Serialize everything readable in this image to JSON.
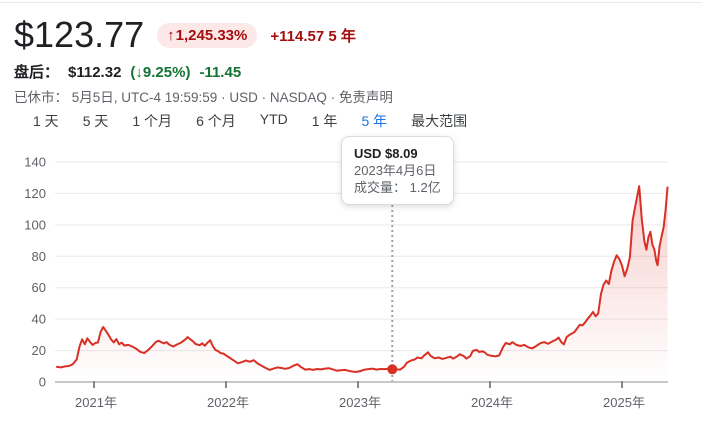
{
  "header": {
    "price": "$123.77",
    "change_arrow": "↑",
    "change_pct": "1,245.33%",
    "change_abs_period": "+114.57 5 年",
    "after_hours_label": "盘后：",
    "after_hours_price": "$112.32",
    "after_hours_pct": "(↓9.25%)",
    "after_hours_abs": "-11.45",
    "status_prefix": "已休市： 5月5日, UTC-4 19:59:59 · USD · NASDAQ ·",
    "disclaimer_label": "免责声明"
  },
  "tabs": [
    {
      "label": "1 天",
      "selected": false
    },
    {
      "label": "5 天",
      "selected": false
    },
    {
      "label": "1 个月",
      "selected": false
    },
    {
      "label": "6 个月",
      "selected": false
    },
    {
      "label": "YTD",
      "selected": false
    },
    {
      "label": "1 年",
      "selected": false
    },
    {
      "label": "5 年",
      "selected": true
    },
    {
      "label": "最大范围",
      "selected": false
    }
  ],
  "tooltip": {
    "price_line": "USD $8.09",
    "date_line": "2023年4月6日",
    "volume_label": "成交量：",
    "volume_value": "1.2亿"
  },
  "colors": {
    "up_red": "#a50e0e",
    "badge_bg": "#fce8e6",
    "down_green": "#137333",
    "accent_blue": "#1a73e8",
    "line_red": "#d93025",
    "grid_gray": "#e8eaed"
  },
  "chart_data": {
    "type": "area",
    "title": "",
    "xlabel": "",
    "ylabel": "",
    "ylim": [
      0,
      140
    ],
    "grid": true,
    "x_axis": {
      "labels": [
        "2021年",
        "2022年",
        "2023年",
        "2024年",
        "2025年"
      ],
      "tick_years": [
        2021,
        2022,
        2023,
        2024,
        2025
      ]
    },
    "y_axis": {
      "labels": [
        "140",
        "120",
        "100",
        "80",
        "60",
        "40",
        "20",
        "0"
      ],
      "ticks": [
        140,
        120,
        100,
        80,
        60,
        40,
        20,
        0
      ]
    },
    "line_color": "#d93025",
    "marker": {
      "t": 2023.26,
      "value": 8.09,
      "date": "2023年4月6日",
      "volume": "1.2亿"
    },
    "series": [
      {
        "name": "price",
        "points": [
          [
            2020.72,
            9.6
          ],
          [
            2020.75,
            9.3
          ],
          [
            2020.78,
            9.9
          ],
          [
            2020.81,
            10.2
          ],
          [
            2020.84,
            11.4
          ],
          [
            2020.87,
            14.5
          ],
          [
            2020.89,
            22.5
          ],
          [
            2020.91,
            27.2
          ],
          [
            2020.93,
            24.0
          ],
          [
            2020.95,
            27.8
          ],
          [
            2020.97,
            25.5
          ],
          [
            2020.99,
            23.6
          ],
          [
            2021.01,
            24.8
          ],
          [
            2021.03,
            25.2
          ],
          [
            2021.05,
            31.8
          ],
          [
            2021.07,
            35.0
          ],
          [
            2021.09,
            32.5
          ],
          [
            2021.11,
            30.0
          ],
          [
            2021.13,
            27.0
          ],
          [
            2021.15,
            25.2
          ],
          [
            2021.17,
            27.3
          ],
          [
            2021.19,
            24.0
          ],
          [
            2021.21,
            25.0
          ],
          [
            2021.23,
            23.2
          ],
          [
            2021.26,
            23.6
          ],
          [
            2021.29,
            22.6
          ],
          [
            2021.32,
            21.2
          ],
          [
            2021.35,
            19.2
          ],
          [
            2021.38,
            18.4
          ],
          [
            2021.41,
            20.3
          ],
          [
            2021.44,
            22.8
          ],
          [
            2021.47,
            25.6
          ],
          [
            2021.49,
            26.2
          ],
          [
            2021.51,
            25.3
          ],
          [
            2021.53,
            24.6
          ],
          [
            2021.55,
            25.4
          ],
          [
            2021.57,
            23.8
          ],
          [
            2021.6,
            22.6
          ],
          [
            2021.63,
            23.9
          ],
          [
            2021.66,
            25.1
          ],
          [
            2021.69,
            27.0
          ],
          [
            2021.71,
            28.6
          ],
          [
            2021.73,
            27.1
          ],
          [
            2021.75,
            25.9
          ],
          [
            2021.77,
            24.2
          ],
          [
            2021.8,
            23.4
          ],
          [
            2021.82,
            24.6
          ],
          [
            2021.84,
            23.1
          ],
          [
            2021.86,
            25.1
          ],
          [
            2021.88,
            26.6
          ],
          [
            2021.9,
            22.9
          ],
          [
            2021.92,
            20.4
          ],
          [
            2021.94,
            19.6
          ],
          [
            2021.96,
            18.4
          ],
          [
            2021.98,
            18.1
          ],
          [
            2022.0,
            16.9
          ],
          [
            2022.03,
            15.3
          ],
          [
            2022.06,
            13.6
          ],
          [
            2022.09,
            11.9
          ],
          [
            2022.12,
            12.6
          ],
          [
            2022.15,
            13.7
          ],
          [
            2022.18,
            12.9
          ],
          [
            2022.21,
            13.9
          ],
          [
            2022.24,
            11.8
          ],
          [
            2022.27,
            10.3
          ],
          [
            2022.3,
            9.0
          ],
          [
            2022.33,
            7.7
          ],
          [
            2022.36,
            8.5
          ],
          [
            2022.39,
            9.3
          ],
          [
            2022.42,
            8.9
          ],
          [
            2022.45,
            8.4
          ],
          [
            2022.48,
            9.0
          ],
          [
            2022.51,
            10.3
          ],
          [
            2022.54,
            11.3
          ],
          [
            2022.57,
            9.4
          ],
          [
            2022.6,
            7.9
          ],
          [
            2022.63,
            8.2
          ],
          [
            2022.66,
            7.7
          ],
          [
            2022.69,
            8.3
          ],
          [
            2022.72,
            8.0
          ],
          [
            2022.75,
            8.5
          ],
          [
            2022.78,
            8.8
          ],
          [
            2022.81,
            8.0
          ],
          [
            2022.84,
            7.2
          ],
          [
            2022.87,
            7.5
          ],
          [
            2022.9,
            7.7
          ],
          [
            2022.93,
            7.1
          ],
          [
            2022.96,
            6.6
          ],
          [
            2022.99,
            6.4
          ],
          [
            2023.02,
            7.0
          ],
          [
            2023.05,
            7.9
          ],
          [
            2023.08,
            8.2
          ],
          [
            2023.11,
            8.5
          ],
          [
            2023.14,
            7.9
          ],
          [
            2023.17,
            8.3
          ],
          [
            2023.2,
            8.2
          ],
          [
            2023.23,
            8.4
          ],
          [
            2023.26,
            8.09
          ],
          [
            2023.29,
            8.0
          ],
          [
            2023.32,
            7.9
          ],
          [
            2023.35,
            9.8
          ],
          [
            2023.37,
            12.2
          ],
          [
            2023.4,
            13.6
          ],
          [
            2023.43,
            14.4
          ],
          [
            2023.45,
            15.6
          ],
          [
            2023.48,
            15.1
          ],
          [
            2023.5,
            16.8
          ],
          [
            2023.53,
            18.9
          ],
          [
            2023.55,
            16.6
          ],
          [
            2023.58,
            15.1
          ],
          [
            2023.61,
            15.6
          ],
          [
            2023.64,
            14.7
          ],
          [
            2023.67,
            15.4
          ],
          [
            2023.7,
            16.1
          ],
          [
            2023.72,
            14.9
          ],
          [
            2023.75,
            16.2
          ],
          [
            2023.77,
            17.6
          ],
          [
            2023.8,
            16.6
          ],
          [
            2023.82,
            14.9
          ],
          [
            2023.85,
            16.4
          ],
          [
            2023.87,
            19.8
          ],
          [
            2023.9,
            20.4
          ],
          [
            2023.92,
            19.0
          ],
          [
            2023.94,
            19.6
          ],
          [
            2023.96,
            18.9
          ],
          [
            2023.98,
            17.3
          ],
          [
            2024.01,
            16.7
          ],
          [
            2024.04,
            16.3
          ],
          [
            2024.07,
            16.9
          ],
          [
            2024.1,
            22.4
          ],
          [
            2024.12,
            24.8
          ],
          [
            2024.15,
            24.0
          ],
          [
            2024.17,
            25.3
          ],
          [
            2024.2,
            23.6
          ],
          [
            2024.23,
            22.9
          ],
          [
            2024.26,
            23.6
          ],
          [
            2024.29,
            22.1
          ],
          [
            2024.32,
            21.4
          ],
          [
            2024.35,
            22.9
          ],
          [
            2024.38,
            24.6
          ],
          [
            2024.41,
            25.4
          ],
          [
            2024.44,
            24.3
          ],
          [
            2024.47,
            25.7
          ],
          [
            2024.5,
            26.9
          ],
          [
            2024.52,
            28.3
          ],
          [
            2024.54,
            25.4
          ],
          [
            2024.56,
            23.9
          ],
          [
            2024.58,
            28.6
          ],
          [
            2024.61,
            30.4
          ],
          [
            2024.64,
            31.8
          ],
          [
            2024.66,
            34.1
          ],
          [
            2024.68,
            36.4
          ],
          [
            2024.7,
            36.0
          ],
          [
            2024.72,
            37.8
          ],
          [
            2024.74,
            40.3
          ],
          [
            2024.76,
            42.2
          ],
          [
            2024.78,
            44.6
          ],
          [
            2024.8,
            41.8
          ],
          [
            2024.82,
            43.6
          ],
          [
            2024.84,
            55.8
          ],
          [
            2024.86,
            61.9
          ],
          [
            2024.88,
            64.6
          ],
          [
            2024.9,
            62.3
          ],
          [
            2024.92,
            70.8
          ],
          [
            2024.94,
            76.6
          ],
          [
            2024.96,
            80.6
          ],
          [
            2024.98,
            78.2
          ],
          [
            2025.0,
            74.1
          ],
          [
            2025.02,
            67.3
          ],
          [
            2025.04,
            72.2
          ],
          [
            2025.06,
            79.4
          ],
          [
            2025.08,
            102.8
          ],
          [
            2025.1,
            111.6
          ],
          [
            2025.13,
            124.6
          ],
          [
            2025.15,
            103.5
          ],
          [
            2025.17,
            89.5
          ],
          [
            2025.185,
            84.2
          ],
          [
            2025.2,
            92.1
          ],
          [
            2025.215,
            95.6
          ],
          [
            2025.23,
            87.3
          ],
          [
            2025.245,
            84.6
          ],
          [
            2025.26,
            76.9
          ],
          [
            2025.27,
            74.3
          ],
          [
            2025.285,
            86.4
          ],
          [
            2025.3,
            92.7
          ],
          [
            2025.315,
            98.3
          ],
          [
            2025.33,
            109.4
          ],
          [
            2025.345,
            123.8
          ]
        ]
      }
    ]
  }
}
